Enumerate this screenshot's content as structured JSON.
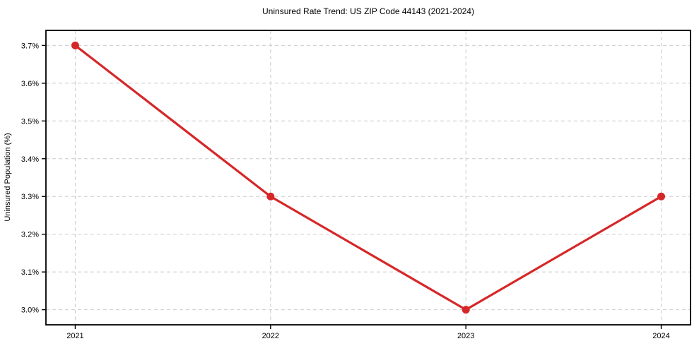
{
  "figure": {
    "background": "#ffffff",
    "text_color": "#000000"
  },
  "chart_data": {
    "type": "line",
    "title": "Uninsured Rate Trend: US ZIP Code 44143 (2021-2024)",
    "xlabel": "",
    "ylabel": "Uninsured Population (%)",
    "categories": [
      "2021",
      "2022",
      "2023",
      "2024"
    ],
    "series": [
      {
        "name": "Uninsured Rate",
        "values": [
          3.7,
          3.3,
          3.0,
          3.3
        ],
        "color": "#d62728",
        "marker": "circle"
      }
    ],
    "yticks": [
      3.0,
      3.1,
      3.2,
      3.3,
      3.4,
      3.5,
      3.6,
      3.7
    ],
    "ytick_labels": [
      "3.0%",
      "3.1%",
      "3.2%",
      "3.3%",
      "3.4%",
      "3.5%",
      "3.6%",
      "3.7%"
    ],
    "ylim": [
      2.96,
      3.74
    ],
    "xlim": [
      -0.15,
      3.15
    ],
    "grid": true,
    "grid_style": "dashed",
    "grid_color": "#cccccc",
    "spine_color": "#000000",
    "tick_color": "#000000",
    "legend": false
  }
}
